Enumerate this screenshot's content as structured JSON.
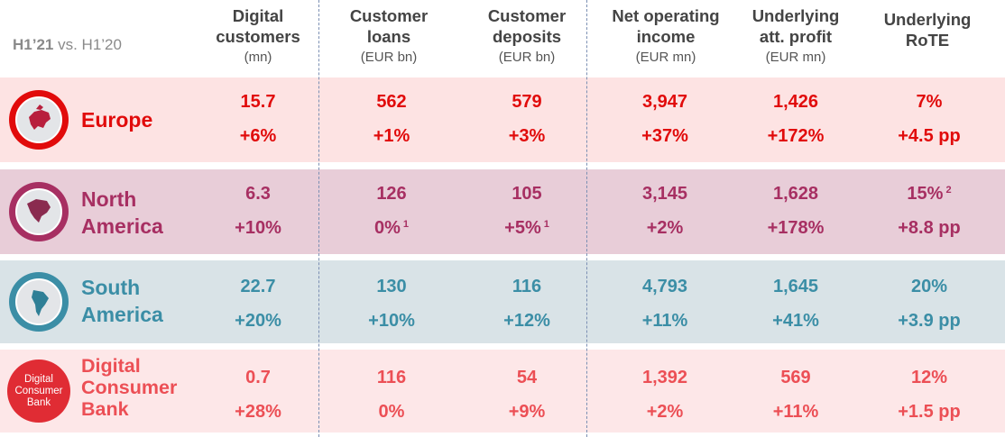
{
  "period": {
    "bold": "H1’21",
    "rest": " vs. H1’20"
  },
  "headers": [
    {
      "title": "Digital\ncustomers",
      "unit": "(mn)"
    },
    {
      "title": "Customer\nloans",
      "unit": "(EUR bn)"
    },
    {
      "title": "Customer\ndeposits",
      "unit": "(EUR bn)"
    },
    {
      "title": "Net operating\nincome",
      "unit": "(EUR mn)"
    },
    {
      "title": "Underlying\natt. profit",
      "unit": "(EUR mn)"
    },
    {
      "title": "Underlying\nRoTE",
      "unit": ""
    }
  ],
  "colors": {
    "europe_bg": "#fde3e3",
    "europe_text": "#e10b0b",
    "na_bg": "#e8cdd8",
    "na_text": "#a72f62",
    "sa_bg": "#d9e3e7",
    "sa_text": "#3b8ea6",
    "dcb_bg": "#fde7e8",
    "dcb_text": "#ec4f55"
  },
  "regions": [
    {
      "name": "Europe",
      "icon": "europe-globe-icon",
      "values": [
        "15.7",
        "562",
        "579",
        "3,947",
        "1,426",
        "7%"
      ],
      "changes": [
        "+6%",
        "+1%",
        "+3%",
        "+37%",
        "+172%",
        "+4.5 pp"
      ],
      "value_notes": [
        "",
        "",
        "",
        "",
        "",
        ""
      ],
      "change_notes": [
        "",
        "",
        "",
        "",
        "",
        ""
      ]
    },
    {
      "name": "North\nAmerica",
      "icon": "north-america-globe-icon",
      "values": [
        "6.3",
        "126",
        "105",
        "3,145",
        "1,628",
        "15%"
      ],
      "changes": [
        "+10%",
        "0%",
        "+5%",
        "+2%",
        "+178%",
        "+8.8 pp"
      ],
      "value_notes": [
        "",
        "",
        "",
        "",
        "",
        "2"
      ],
      "change_notes": [
        "",
        "1",
        "1",
        "",
        "",
        ""
      ]
    },
    {
      "name": "South\nAmerica",
      "icon": "south-america-globe-icon",
      "values": [
        "22.7",
        "130",
        "116",
        "4,793",
        "1,645",
        "20%"
      ],
      "changes": [
        "+20%",
        "+10%",
        "+12%",
        "+11%",
        "+41%",
        "+3.9 pp"
      ],
      "value_notes": [
        "",
        "",
        "",
        "",
        "",
        ""
      ],
      "change_notes": [
        "",
        "",
        "",
        "",
        "",
        ""
      ]
    },
    {
      "name": "Digital\nConsumer\nBank",
      "icon": "digital-consumer-bank-logo",
      "logo_text": "Digital\nConsumer\nBank",
      "values": [
        "0.7",
        "116",
        "54",
        "1,392",
        "569",
        "12%"
      ],
      "changes": [
        "+28%",
        "0%",
        "+9%",
        "+2%",
        "+11%",
        "+1.5 pp"
      ],
      "value_notes": [
        "",
        "",
        "",
        "",
        "",
        ""
      ],
      "change_notes": [
        "",
        "",
        "",
        "",
        "",
        ""
      ]
    }
  ]
}
